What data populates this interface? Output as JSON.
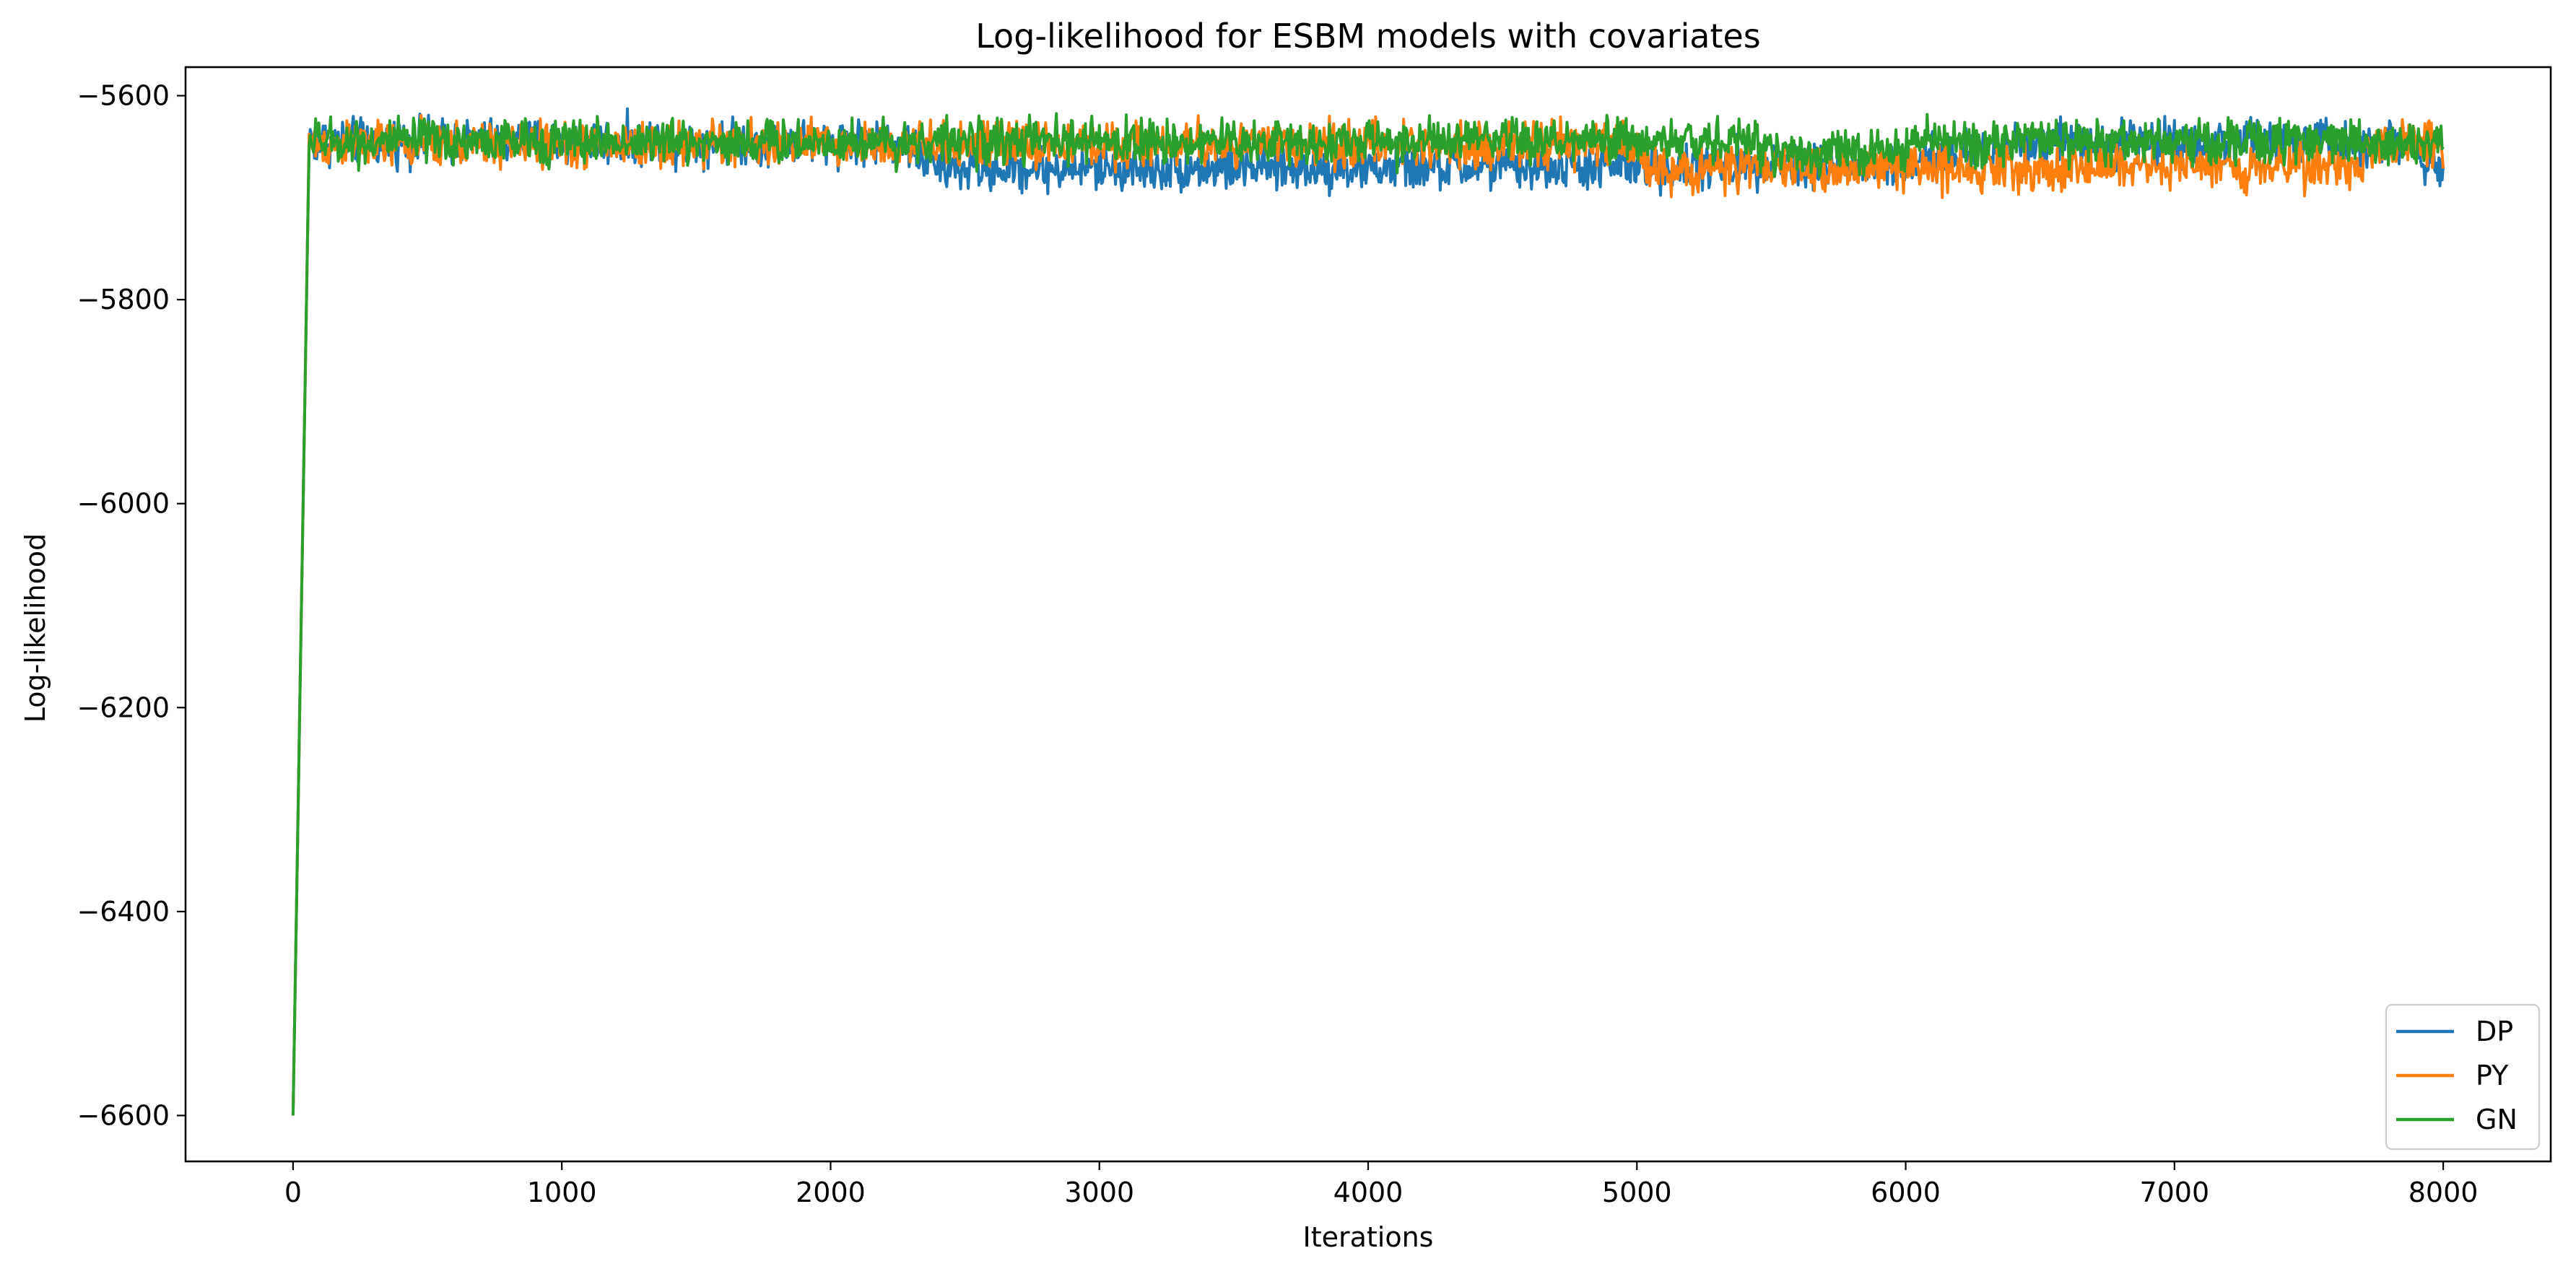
{
  "chart_data": {
    "type": "line",
    "title": "Log-likelihood for ESBM models with covariates",
    "xlabel": "Iterations",
    "ylabel": "Log-likelihood",
    "xlim": [
      -400,
      8400
    ],
    "ylim": [
      -6645,
      -5572
    ],
    "xticks": [
      0,
      1000,
      2000,
      3000,
      4000,
      5000,
      6000,
      7000,
      8000
    ],
    "yticks": [
      -6600,
      -6400,
      -6200,
      -6000,
      -5800,
      -5600
    ],
    "xtick_labels": [
      "0",
      "1000",
      "2000",
      "3000",
      "4000",
      "5000",
      "6000",
      "7000",
      "8000"
    ],
    "ytick_labels": [
      "−6600",
      "−6400",
      "−6200",
      "−6000",
      "−5800",
      "−5600"
    ],
    "grid": false,
    "legend_position": "bottom-right",
    "iterations": 8000,
    "series": [
      {
        "name": "DP",
        "color": "#1f77b4",
        "start_value": -6600,
        "noise_amplitude": 11,
        "level_segments": [
          {
            "from": 0,
            "to": 60,
            "start": -6600,
            "end": -5640
          },
          {
            "from": 60,
            "to": 2250,
            "start": -5645,
            "end": -5645
          },
          {
            "from": 2250,
            "to": 2400,
            "start": -5645,
            "end": -5670
          },
          {
            "from": 2400,
            "to": 5200,
            "start": -5672,
            "end": -5670
          },
          {
            "from": 5200,
            "to": 5500,
            "start": -5670,
            "end": -5665
          },
          {
            "from": 5500,
            "to": 6000,
            "start": -5665,
            "end": -5672
          },
          {
            "from": 6000,
            "to": 6400,
            "start": -5665,
            "end": -5650
          },
          {
            "from": 6400,
            "to": 7900,
            "start": -5645,
            "end": -5645
          },
          {
            "from": 7900,
            "to": 8000,
            "start": -5660,
            "end": -5665
          }
        ]
      },
      {
        "name": "PY",
        "color": "#ff7f0e",
        "start_value": -6600,
        "noise_amplitude": 11,
        "level_segments": [
          {
            "from": 0,
            "to": 60,
            "start": -6600,
            "end": -5640
          },
          {
            "from": 60,
            "to": 4950,
            "start": -5648,
            "end": -5648
          },
          {
            "from": 4950,
            "to": 5100,
            "start": -5648,
            "end": -5672
          },
          {
            "from": 5100,
            "to": 7700,
            "start": -5672,
            "end": -5668
          },
          {
            "from": 7700,
            "to": 8000,
            "start": -5650,
            "end": -5645
          }
        ]
      },
      {
        "name": "GN",
        "color": "#2ca02c",
        "start_value": -6600,
        "noise_amplitude": 11,
        "level_segments": [
          {
            "from": 0,
            "to": 60,
            "start": -6600,
            "end": -5640
          },
          {
            "from": 60,
            "to": 5500,
            "start": -5645,
            "end": -5645
          },
          {
            "from": 5500,
            "to": 6000,
            "start": -5655,
            "end": -5655
          },
          {
            "from": 6000,
            "to": 8000,
            "start": -5645,
            "end": -5645
          }
        ]
      }
    ]
  }
}
